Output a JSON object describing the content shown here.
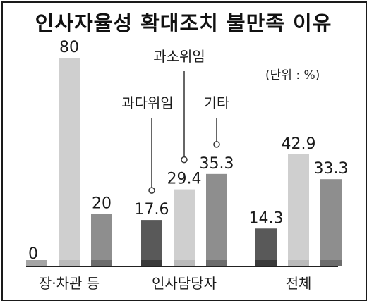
{
  "chart_data": {
    "type": "bar",
    "title": "인사자율성 확대조치 불만족 이유",
    "unit": "(단위 : %)",
    "categories": [
      "장·차관 등",
      "인사담당자",
      "전체"
    ],
    "series": [
      {
        "name": "과다위임",
        "color": "#595959",
        "values": [
          0,
          17.6,
          14.3
        ]
      },
      {
        "name": "과소위임",
        "color": "#cfcfcf",
        "values": [
          80,
          29.4,
          42.9
        ]
      },
      {
        "name": "기타",
        "color": "#8e8e8e",
        "values": [
          20,
          35.3,
          33.3
        ]
      }
    ],
    "value_labels": [
      [
        "0",
        "80",
        "20"
      ],
      [
        "17.6",
        "29.4",
        "35.3"
      ],
      [
        "14.3",
        "42.9",
        "33.3"
      ]
    ],
    "ylim": [
      0,
      80
    ],
    "grid": false,
    "legend": "callouts"
  }
}
